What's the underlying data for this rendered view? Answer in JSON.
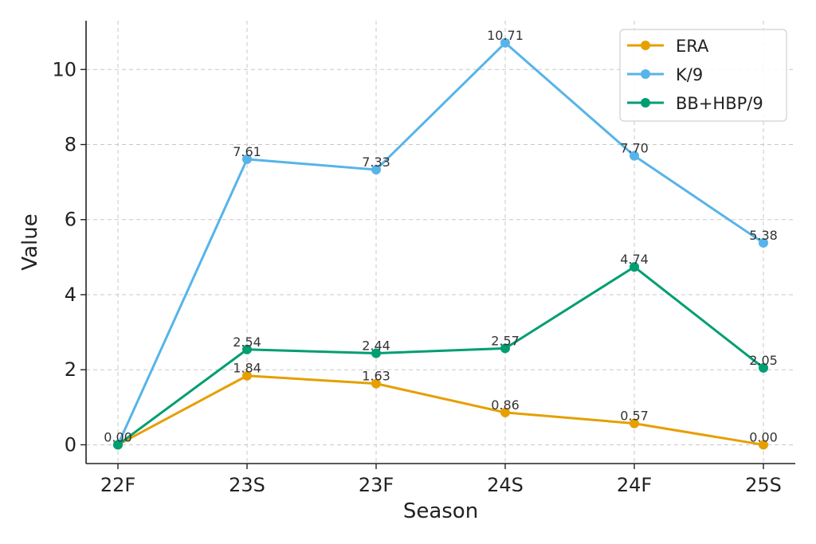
{
  "chart_data": {
    "type": "line",
    "title": "",
    "xlabel": "Season",
    "ylabel": "Value",
    "categories": [
      "22F",
      "23S",
      "23F",
      "24S",
      "24F",
      "25S"
    ],
    "ylim": [
      -0.5,
      11.3
    ],
    "yticks": [
      0,
      2,
      4,
      6,
      8,
      10
    ],
    "grid": true,
    "legend_position": "top-right",
    "series": [
      {
        "name": "ERA",
        "color": "#E69F00",
        "values": [
          0.0,
          1.84,
          1.63,
          0.86,
          0.57,
          0.0
        ],
        "labels": [
          "0.00",
          "1.84",
          "1.63",
          "0.86",
          "0.57",
          "0.00"
        ]
      },
      {
        "name": "K/9",
        "color": "#56B4E9",
        "values": [
          0.0,
          7.61,
          7.33,
          10.71,
          7.7,
          5.38
        ],
        "labels": [
          "",
          "7.61",
          "7.33",
          "10.71",
          "7.70",
          "5.38"
        ]
      },
      {
        "name": "BB+HBP/9",
        "color": "#009E73",
        "values": [
          0.0,
          2.54,
          2.44,
          2.57,
          4.74,
          2.05
        ],
        "labels": [
          "",
          "2.54",
          "2.44",
          "2.57",
          "4.74",
          "2.05"
        ]
      }
    ]
  }
}
